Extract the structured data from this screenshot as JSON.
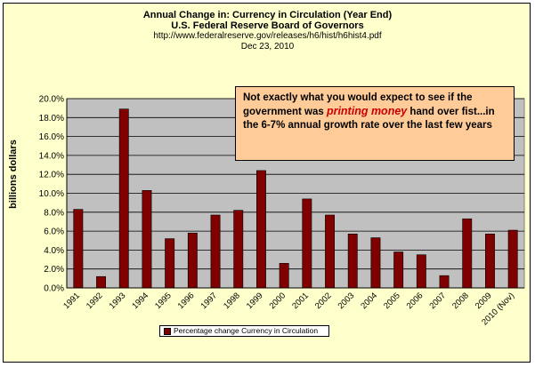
{
  "header": {
    "title": "Annual Change in: Currency in Circulation (Year End)",
    "subtitle": "U.S. Federal Reserve Board of Governors",
    "source": "http://www.federalreserve.gov/releases/h6/hist/h6hist4.pdf",
    "date": "Dec 23, 2010"
  },
  "annotation": {
    "before": "Not exactly what you would expect to see if the government was ",
    "highlight": "printing money",
    "after": " hand over fist...in the 6-7% annual growth rate over the last few years"
  },
  "colors": {
    "background": "#ffffcc",
    "plot_area": "#c0c0c0",
    "bar": "#800000",
    "annotation_bg": "#ffcc99",
    "highlight": "#cc0000"
  },
  "chart_data": {
    "type": "bar",
    "title": "Annual Change in: Currency in Circulation (Year End)",
    "ylabel": "billions dollars",
    "xlabel": "",
    "categories": [
      "1991",
      "1992",
      "1993",
      "1994",
      "1995",
      "1996",
      "1997",
      "1998",
      "1999",
      "2000",
      "2001",
      "2002",
      "2003",
      "2004",
      "2005",
      "2006",
      "2007",
      "2008",
      "2009",
      "2010 (Nov)"
    ],
    "series": [
      {
        "name": "Percentage change Currency in Circulation",
        "values": [
          8.3,
          1.2,
          18.9,
          10.3,
          5.2,
          5.8,
          7.7,
          8.2,
          12.4,
          2.6,
          9.4,
          7.7,
          5.7,
          5.3,
          3.8,
          3.5,
          1.3,
          7.3,
          5.7,
          6.1
        ]
      }
    ],
    "ylim": [
      0,
      20
    ],
    "yticks": [
      "0.0%",
      "2.0%",
      "4.0%",
      "6.0%",
      "8.0%",
      "10.0%",
      "12.0%",
      "14.0%",
      "16.0%",
      "18.0%",
      "20.0%"
    ],
    "grid": true,
    "legend_position": "bottom"
  }
}
